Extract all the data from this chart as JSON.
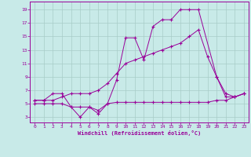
{
  "xlabel": "Windchill (Refroidissement éolien,°C)",
  "bg_color": "#c8eae8",
  "line_color": "#990099",
  "grid_color": "#a8ccc8",
  "xlim": [
    -0.5,
    23.5
  ],
  "ylim": [
    2.2,
    20.2
  ],
  "xticks": [
    0,
    1,
    2,
    3,
    4,
    5,
    6,
    7,
    8,
    9,
    10,
    11,
    12,
    13,
    14,
    15,
    16,
    17,
    18,
    19,
    20,
    21,
    22,
    23
  ],
  "yticks": [
    3,
    5,
    7,
    9,
    11,
    13,
    15,
    17,
    19
  ],
  "line1_x": [
    0,
    1,
    2,
    3,
    4,
    5,
    6,
    7,
    8,
    9,
    10,
    11,
    12,
    13,
    14,
    15,
    16,
    17,
    18,
    20,
    21,
    22,
    23
  ],
  "line1_y": [
    5.5,
    5.5,
    6.5,
    6.5,
    4.5,
    4.5,
    4.5,
    4.0,
    5.0,
    8.5,
    14.8,
    14.8,
    11.5,
    16.5,
    17.5,
    17.5,
    19.0,
    19.0,
    19.0,
    9.0,
    6.0,
    6.0,
    6.5
  ],
  "line2_x": [
    0,
    1,
    2,
    3,
    4,
    5,
    6,
    7,
    8,
    9,
    10,
    11,
    12,
    13,
    14,
    15,
    16,
    17,
    18,
    19,
    20,
    21,
    22,
    23
  ],
  "line2_y": [
    5.0,
    5.0,
    5.0,
    5.0,
    4.5,
    3.0,
    4.5,
    3.5,
    5.0,
    5.2,
    5.2,
    5.2,
    5.2,
    5.2,
    5.2,
    5.2,
    5.2,
    5.2,
    5.2,
    5.2,
    5.5,
    5.5,
    6.0,
    6.5
  ],
  "line3_x": [
    0,
    1,
    2,
    3,
    4,
    5,
    6,
    7,
    8,
    9,
    10,
    11,
    12,
    13,
    14,
    15,
    16,
    17,
    18,
    19,
    20,
    21,
    22,
    23
  ],
  "line3_y": [
    5.5,
    5.5,
    5.5,
    6.0,
    6.5,
    6.5,
    6.5,
    7.0,
    8.0,
    9.5,
    11.0,
    11.5,
    12.0,
    12.5,
    13.0,
    13.5,
    14.0,
    15.0,
    16.0,
    12.0,
    9.0,
    6.5,
    6.0,
    6.5
  ]
}
